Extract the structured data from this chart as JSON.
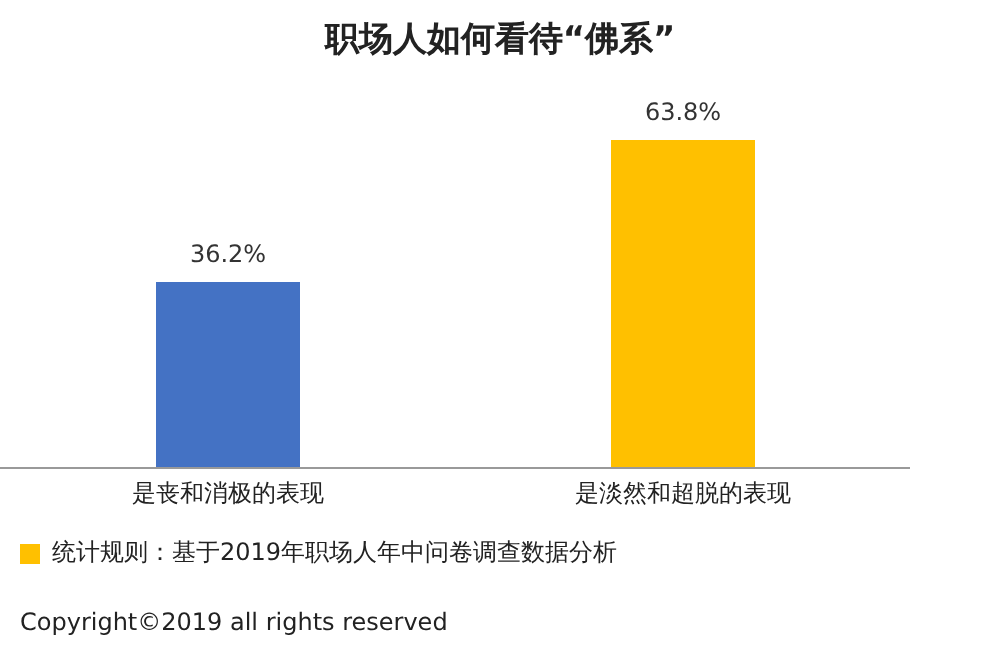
{
  "chart_data": {
    "type": "bar",
    "title": "职场人如何看待“佛系”",
    "categories": [
      "是丧和消极的表现",
      "是淡然和超脱的表现"
    ],
    "values": [
      36.2,
      63.8
    ],
    "colors": [
      "#4472c4",
      "#ffc000"
    ],
    "value_labels": [
      "36.2%",
      "63.8%"
    ],
    "annotations": [
      "统计规则：基于2019年职场人年中问卷调查数据分析",
      "Copyright©2019 all rights reserved"
    ]
  }
}
